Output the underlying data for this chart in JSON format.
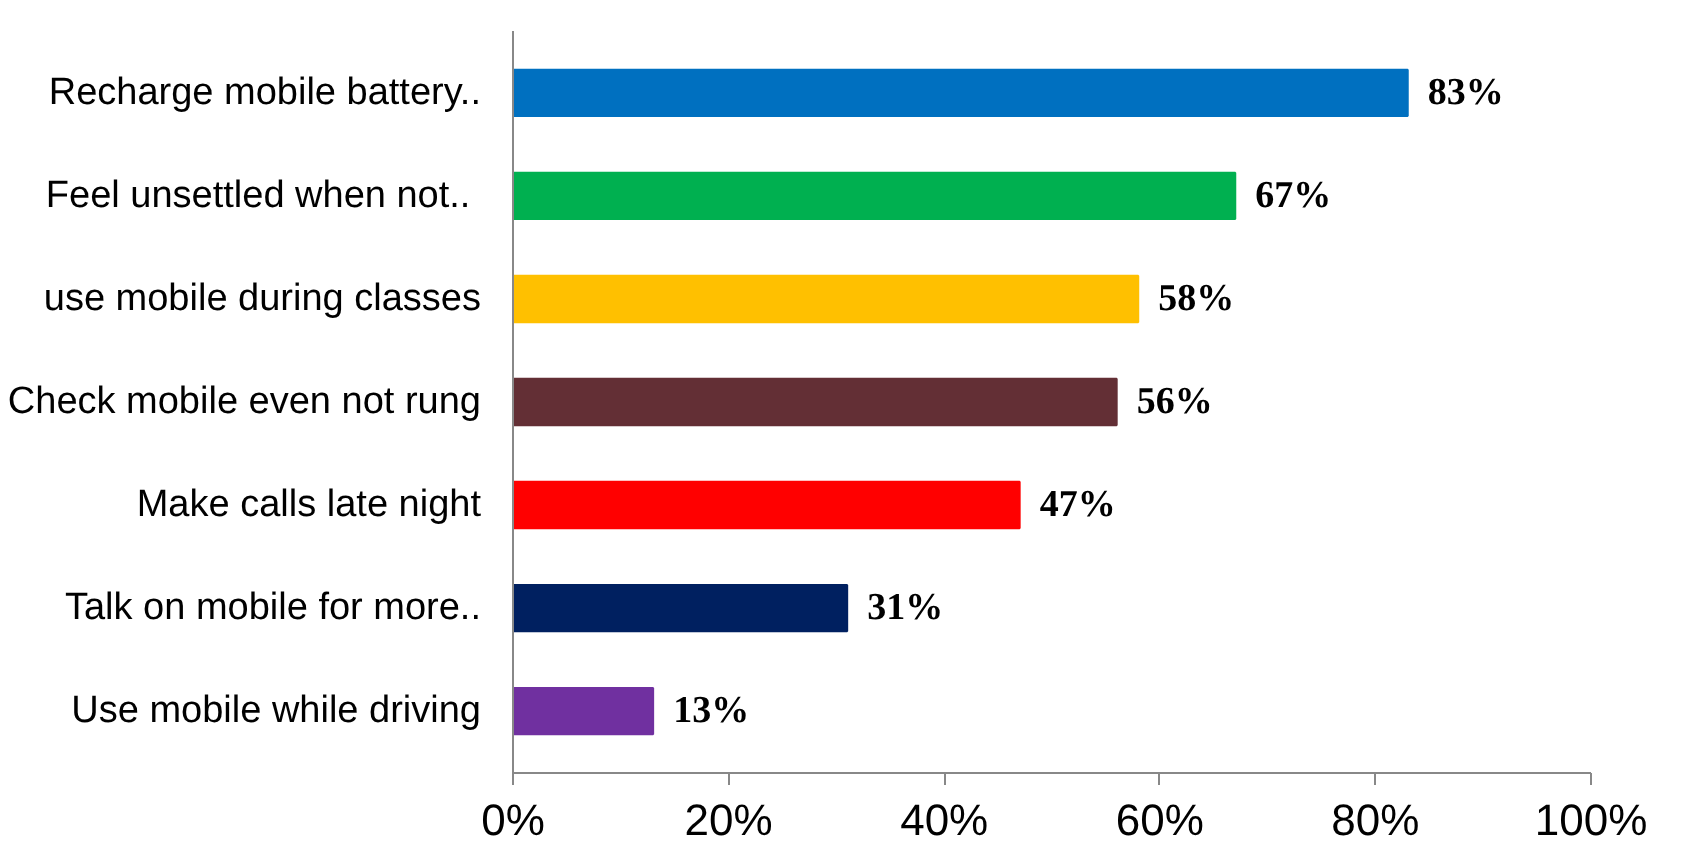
{
  "chart_data": {
    "type": "bar",
    "orientation": "horizontal",
    "categories": [
      "Recharge mobile battery..",
      "Feel unsettled when  not..",
      "use mobile during classes",
      "Check mobile even not rung",
      "Make calls late night",
      "Talk on mobile for more..",
      "Use mobile while driving"
    ],
    "values": [
      83,
      67,
      58,
      56,
      47,
      31,
      13
    ],
    "colors": [
      "#0070c0",
      "#00b050",
      "#ffc000",
      "#632f35",
      "#ff0000",
      "#002060",
      "#7030a0"
    ],
    "value_labels": [
      "83%",
      "67%",
      "58%",
      "56%",
      "47%",
      "31%",
      "13%"
    ],
    "xlim": [
      0,
      100
    ],
    "xticks": [
      {
        "value": 0,
        "label": "0%"
      },
      {
        "value": 20,
        "label": "20%"
      },
      {
        "value": 40,
        "label": "40%"
      },
      {
        "value": 60,
        "label": "60%"
      },
      {
        "value": 80,
        "label": "80%"
      },
      {
        "value": 100,
        "label": "100%"
      }
    ],
    "grid": false
  }
}
